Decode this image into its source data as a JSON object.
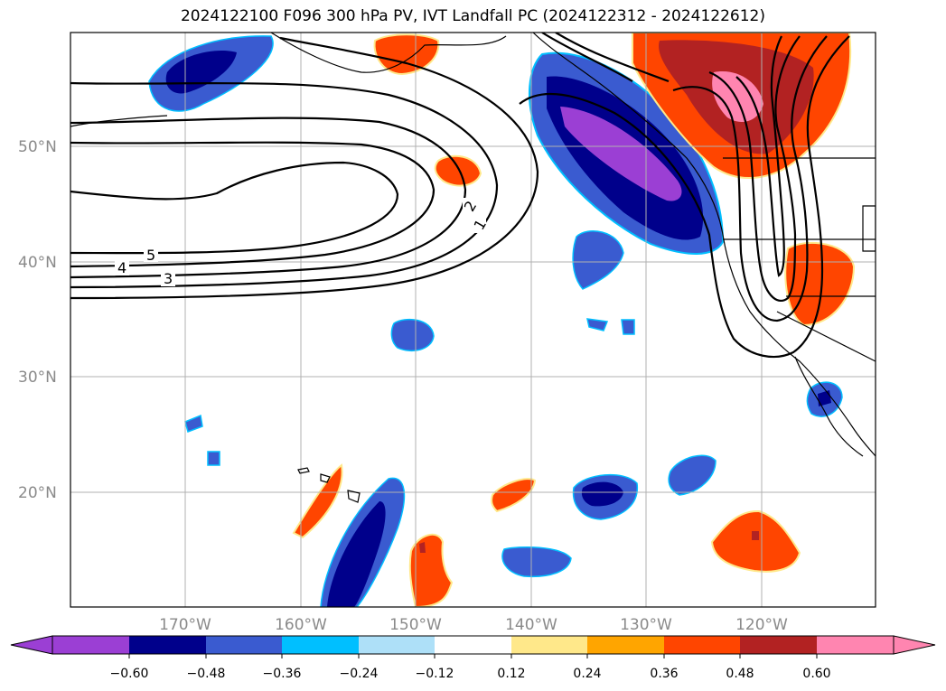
{
  "title": "2024122100 F096 300 hPa PV, IVT Landfall PC (2024122312 - 2024122612)",
  "map": {
    "lat_labels": [
      "50°N",
      "40°N",
      "30°N",
      "20°N"
    ],
    "lon_labels": [
      "170°W",
      "160°W",
      "150°W",
      "140°W",
      "130°W",
      "120°W"
    ],
    "contour_labels": [
      "5",
      "4",
      "3",
      "2",
      "1"
    ]
  },
  "colorbar": {
    "ticks": [
      "−0.60",
      "−0.48",
      "−0.36",
      "−0.24",
      "−0.12",
      "0.12",
      "0.24",
      "0.36",
      "0.48",
      "0.60"
    ],
    "colors": [
      "#9b3fd4",
      "#00008b",
      "#3a5bd0",
      "#00bfff",
      "#aee0f8",
      "#ffffff",
      "#ffe88a",
      "#ffa500",
      "#ff4500",
      "#b22222",
      "#ff85b0"
    ]
  }
}
